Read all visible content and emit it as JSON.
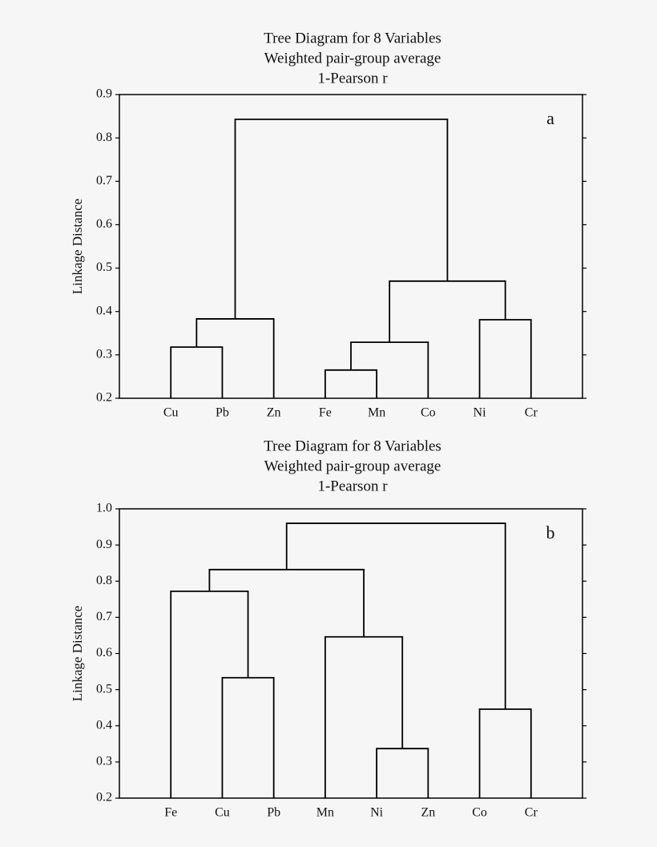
{
  "chart_data": [
    {
      "type": "dendrogram",
      "title": [
        "Tree Diagram for 8 Variables",
        "Weighted pair-group average",
        "1-Pearson r"
      ],
      "ylabel": "Linkage Distance",
      "panel_label": "a",
      "ylim": [
        0.2,
        0.9
      ],
      "yticks": [
        0.2,
        0.3,
        0.4,
        0.5,
        0.6,
        0.7,
        0.8,
        0.9
      ],
      "tree": {
        "height": 0.843,
        "children": [
          {
            "height": 0.383,
            "children": [
              {
                "height": 0.318,
                "children": [
                  "Cu",
                  "Pb"
                ]
              },
              "Zn"
            ]
          },
          {
            "height": 0.47,
            "children": [
              {
                "height": 0.329,
                "children": [
                  {
                    "height": 0.265,
                    "children": [
                      "Fe",
                      "Mn"
                    ]
                  },
                  "Co"
                ]
              },
              {
                "height": 0.381,
                "children": [
                  "Ni",
                  "Cr"
                ]
              }
            ]
          }
        ]
      }
    },
    {
      "type": "dendrogram",
      "title": [
        "Tree Diagram for 8 Variables",
        "Weighted pair-group average",
        "1-Pearson r"
      ],
      "ylabel": "Linkage Distance",
      "panel_label": "b",
      "ylim": [
        0.2,
        1
      ],
      "yticks": [
        0.2,
        0.3,
        0.4,
        0.5,
        0.6,
        0.7,
        0.8,
        0.9,
        {
          "value": 1,
          "label": "1.0"
        }
      ],
      "tree": {
        "height": 0.96,
        "children": [
          {
            "height": 0.832,
            "children": [
              {
                "height": 0.772,
                "children": [
                  "Fe",
                  {
                    "height": 0.533,
                    "children": [
                      "Cu",
                      "Pb"
                    ]
                  }
                ]
              },
              {
                "height": 0.646,
                "children": [
                  "Mn",
                  {
                    "height": 0.337,
                    "children": [
                      "Ni",
                      "Zn"
                    ]
                  }
                ]
              }
            ]
          },
          {
            "height": 0.446,
            "children": [
              "Co",
              "Cr"
            ]
          }
        ]
      }
    }
  ]
}
